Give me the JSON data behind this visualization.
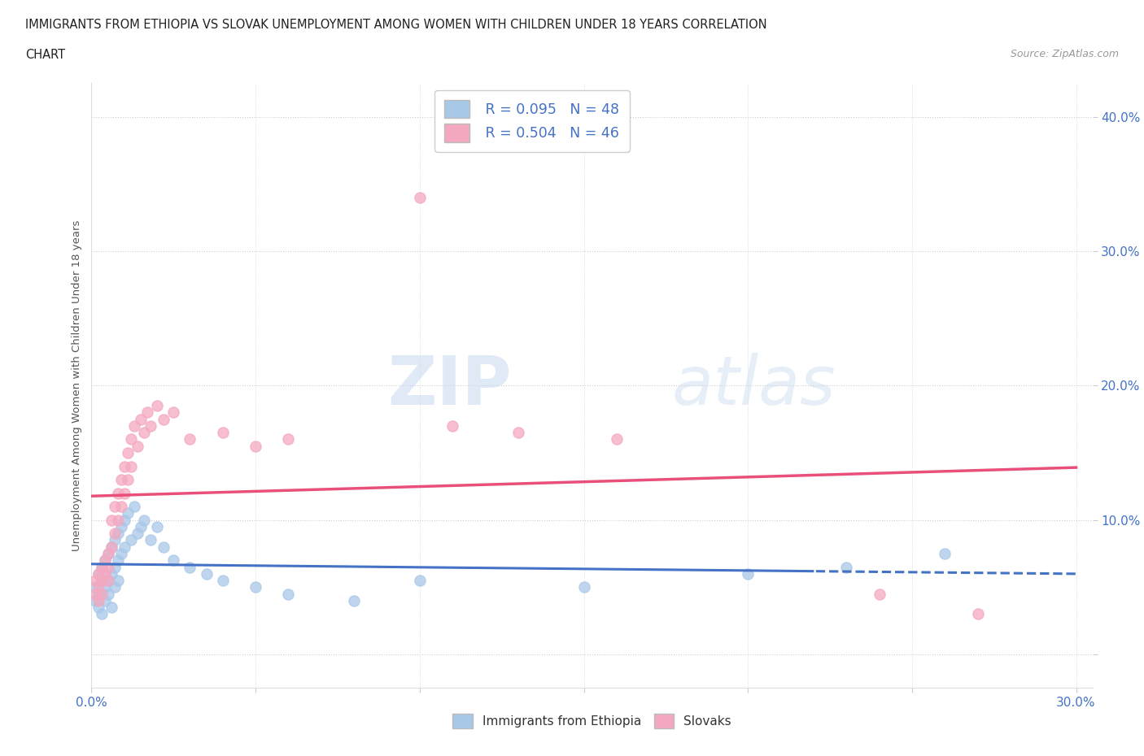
{
  "title_line1": "IMMIGRANTS FROM ETHIOPIA VS SLOVAK UNEMPLOYMENT AMONG WOMEN WITH CHILDREN UNDER 18 YEARS CORRELATION",
  "title_line2": "CHART",
  "source": "Source: ZipAtlas.com",
  "ylabel": "Unemployment Among Women with Children Under 18 years",
  "xlim": [
    0.0,
    0.305
  ],
  "ylim": [
    -0.025,
    0.425
  ],
  "xticks": [
    0.0,
    0.05,
    0.1,
    0.15,
    0.2,
    0.25,
    0.3
  ],
  "yticks": [
    0.0,
    0.1,
    0.2,
    0.3,
    0.4
  ],
  "background_color": "#ffffff",
  "ethiopia_color": "#a8c8e8",
  "slovak_color": "#f4a8c0",
  "ethiopia_line_color": "#4472c4",
  "slovak_line_color": "#e8507a",
  "legend_color": "#4472c4",
  "ethiopia_scatter": [
    [
      0.001,
      0.05
    ],
    [
      0.001,
      0.04
    ],
    [
      0.002,
      0.06
    ],
    [
      0.002,
      0.045
    ],
    [
      0.002,
      0.035
    ],
    [
      0.003,
      0.055
    ],
    [
      0.003,
      0.065
    ],
    [
      0.003,
      0.03
    ],
    [
      0.004,
      0.07
    ],
    [
      0.004,
      0.05
    ],
    [
      0.004,
      0.04
    ],
    [
      0.005,
      0.075
    ],
    [
      0.005,
      0.055
    ],
    [
      0.005,
      0.045
    ],
    [
      0.006,
      0.08
    ],
    [
      0.006,
      0.06
    ],
    [
      0.006,
      0.035
    ],
    [
      0.007,
      0.085
    ],
    [
      0.007,
      0.065
    ],
    [
      0.007,
      0.05
    ],
    [
      0.008,
      0.09
    ],
    [
      0.008,
      0.07
    ],
    [
      0.008,
      0.055
    ],
    [
      0.009,
      0.095
    ],
    [
      0.009,
      0.075
    ],
    [
      0.01,
      0.1
    ],
    [
      0.01,
      0.08
    ],
    [
      0.011,
      0.105
    ],
    [
      0.012,
      0.085
    ],
    [
      0.013,
      0.11
    ],
    [
      0.014,
      0.09
    ],
    [
      0.015,
      0.095
    ],
    [
      0.016,
      0.1
    ],
    [
      0.018,
      0.085
    ],
    [
      0.02,
      0.095
    ],
    [
      0.022,
      0.08
    ],
    [
      0.025,
      0.07
    ],
    [
      0.03,
      0.065
    ],
    [
      0.035,
      0.06
    ],
    [
      0.04,
      0.055
    ],
    [
      0.05,
      0.05
    ],
    [
      0.06,
      0.045
    ],
    [
      0.08,
      0.04
    ],
    [
      0.1,
      0.055
    ],
    [
      0.15,
      0.05
    ],
    [
      0.2,
      0.06
    ],
    [
      0.23,
      0.065
    ],
    [
      0.26,
      0.075
    ]
  ],
  "slovak_scatter": [
    [
      0.001,
      0.045
    ],
    [
      0.001,
      0.055
    ],
    [
      0.002,
      0.05
    ],
    [
      0.002,
      0.06
    ],
    [
      0.002,
      0.04
    ],
    [
      0.003,
      0.065
    ],
    [
      0.003,
      0.055
    ],
    [
      0.003,
      0.045
    ],
    [
      0.004,
      0.07
    ],
    [
      0.004,
      0.06
    ],
    [
      0.005,
      0.075
    ],
    [
      0.005,
      0.065
    ],
    [
      0.005,
      0.055
    ],
    [
      0.006,
      0.1
    ],
    [
      0.006,
      0.08
    ],
    [
      0.007,
      0.11
    ],
    [
      0.007,
      0.09
    ],
    [
      0.008,
      0.12
    ],
    [
      0.008,
      0.1
    ],
    [
      0.009,
      0.13
    ],
    [
      0.009,
      0.11
    ],
    [
      0.01,
      0.14
    ],
    [
      0.01,
      0.12
    ],
    [
      0.011,
      0.15
    ],
    [
      0.011,
      0.13
    ],
    [
      0.012,
      0.16
    ],
    [
      0.012,
      0.14
    ],
    [
      0.013,
      0.17
    ],
    [
      0.014,
      0.155
    ],
    [
      0.015,
      0.175
    ],
    [
      0.016,
      0.165
    ],
    [
      0.017,
      0.18
    ],
    [
      0.018,
      0.17
    ],
    [
      0.02,
      0.185
    ],
    [
      0.022,
      0.175
    ],
    [
      0.025,
      0.18
    ],
    [
      0.03,
      0.16
    ],
    [
      0.04,
      0.165
    ],
    [
      0.05,
      0.155
    ],
    [
      0.06,
      0.16
    ],
    [
      0.1,
      0.34
    ],
    [
      0.11,
      0.17
    ],
    [
      0.13,
      0.165
    ],
    [
      0.16,
      0.16
    ],
    [
      0.24,
      0.045
    ],
    [
      0.27,
      0.03
    ]
  ]
}
